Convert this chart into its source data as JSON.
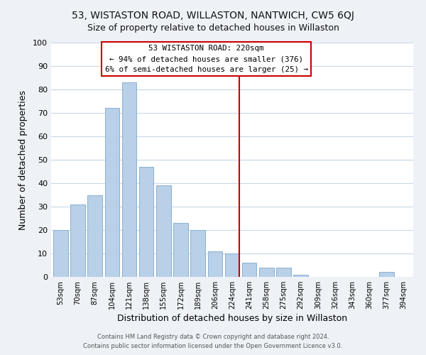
{
  "title": "53, WISTASTON ROAD, WILLASTON, NANTWICH, CW5 6QJ",
  "subtitle": "Size of property relative to detached houses in Willaston",
  "xlabel": "Distribution of detached houses by size in Willaston",
  "ylabel": "Number of detached properties",
  "bar_labels": [
    "53sqm",
    "70sqm",
    "87sqm",
    "104sqm",
    "121sqm",
    "138sqm",
    "155sqm",
    "172sqm",
    "189sqm",
    "206sqm",
    "224sqm",
    "241sqm",
    "258sqm",
    "275sqm",
    "292sqm",
    "309sqm",
    "326sqm",
    "343sqm",
    "360sqm",
    "377sqm",
    "394sqm"
  ],
  "bar_values": [
    20,
    31,
    35,
    72,
    83,
    47,
    39,
    23,
    20,
    11,
    10,
    6,
    4,
    4,
    1,
    0,
    0,
    0,
    0,
    2,
    0
  ],
  "bar_color": "#b8d0e8",
  "bar_edge_color": "#8ab0d0",
  "vline_x_index": 10,
  "vline_color": "#cc0000",
  "annotation_title": "53 WISTASTON ROAD: 220sqm",
  "annotation_line1": "← 94% of detached houses are smaller (376)",
  "annotation_line2": "6% of semi-detached houses are larger (25) →",
  "annotation_box_color": "#ffffff",
  "annotation_box_edge": "#cc0000",
  "ylim": [
    0,
    100
  ],
  "footer_line1": "Contains HM Land Registry data © Crown copyright and database right 2024.",
  "footer_line2": "Contains public sector information licensed under the Open Government Licence v3.0.",
  "bg_color": "#eef2f7",
  "plot_bg_color": "#ffffff",
  "title_fontsize": 10,
  "grid_color": "#c8d8e8"
}
